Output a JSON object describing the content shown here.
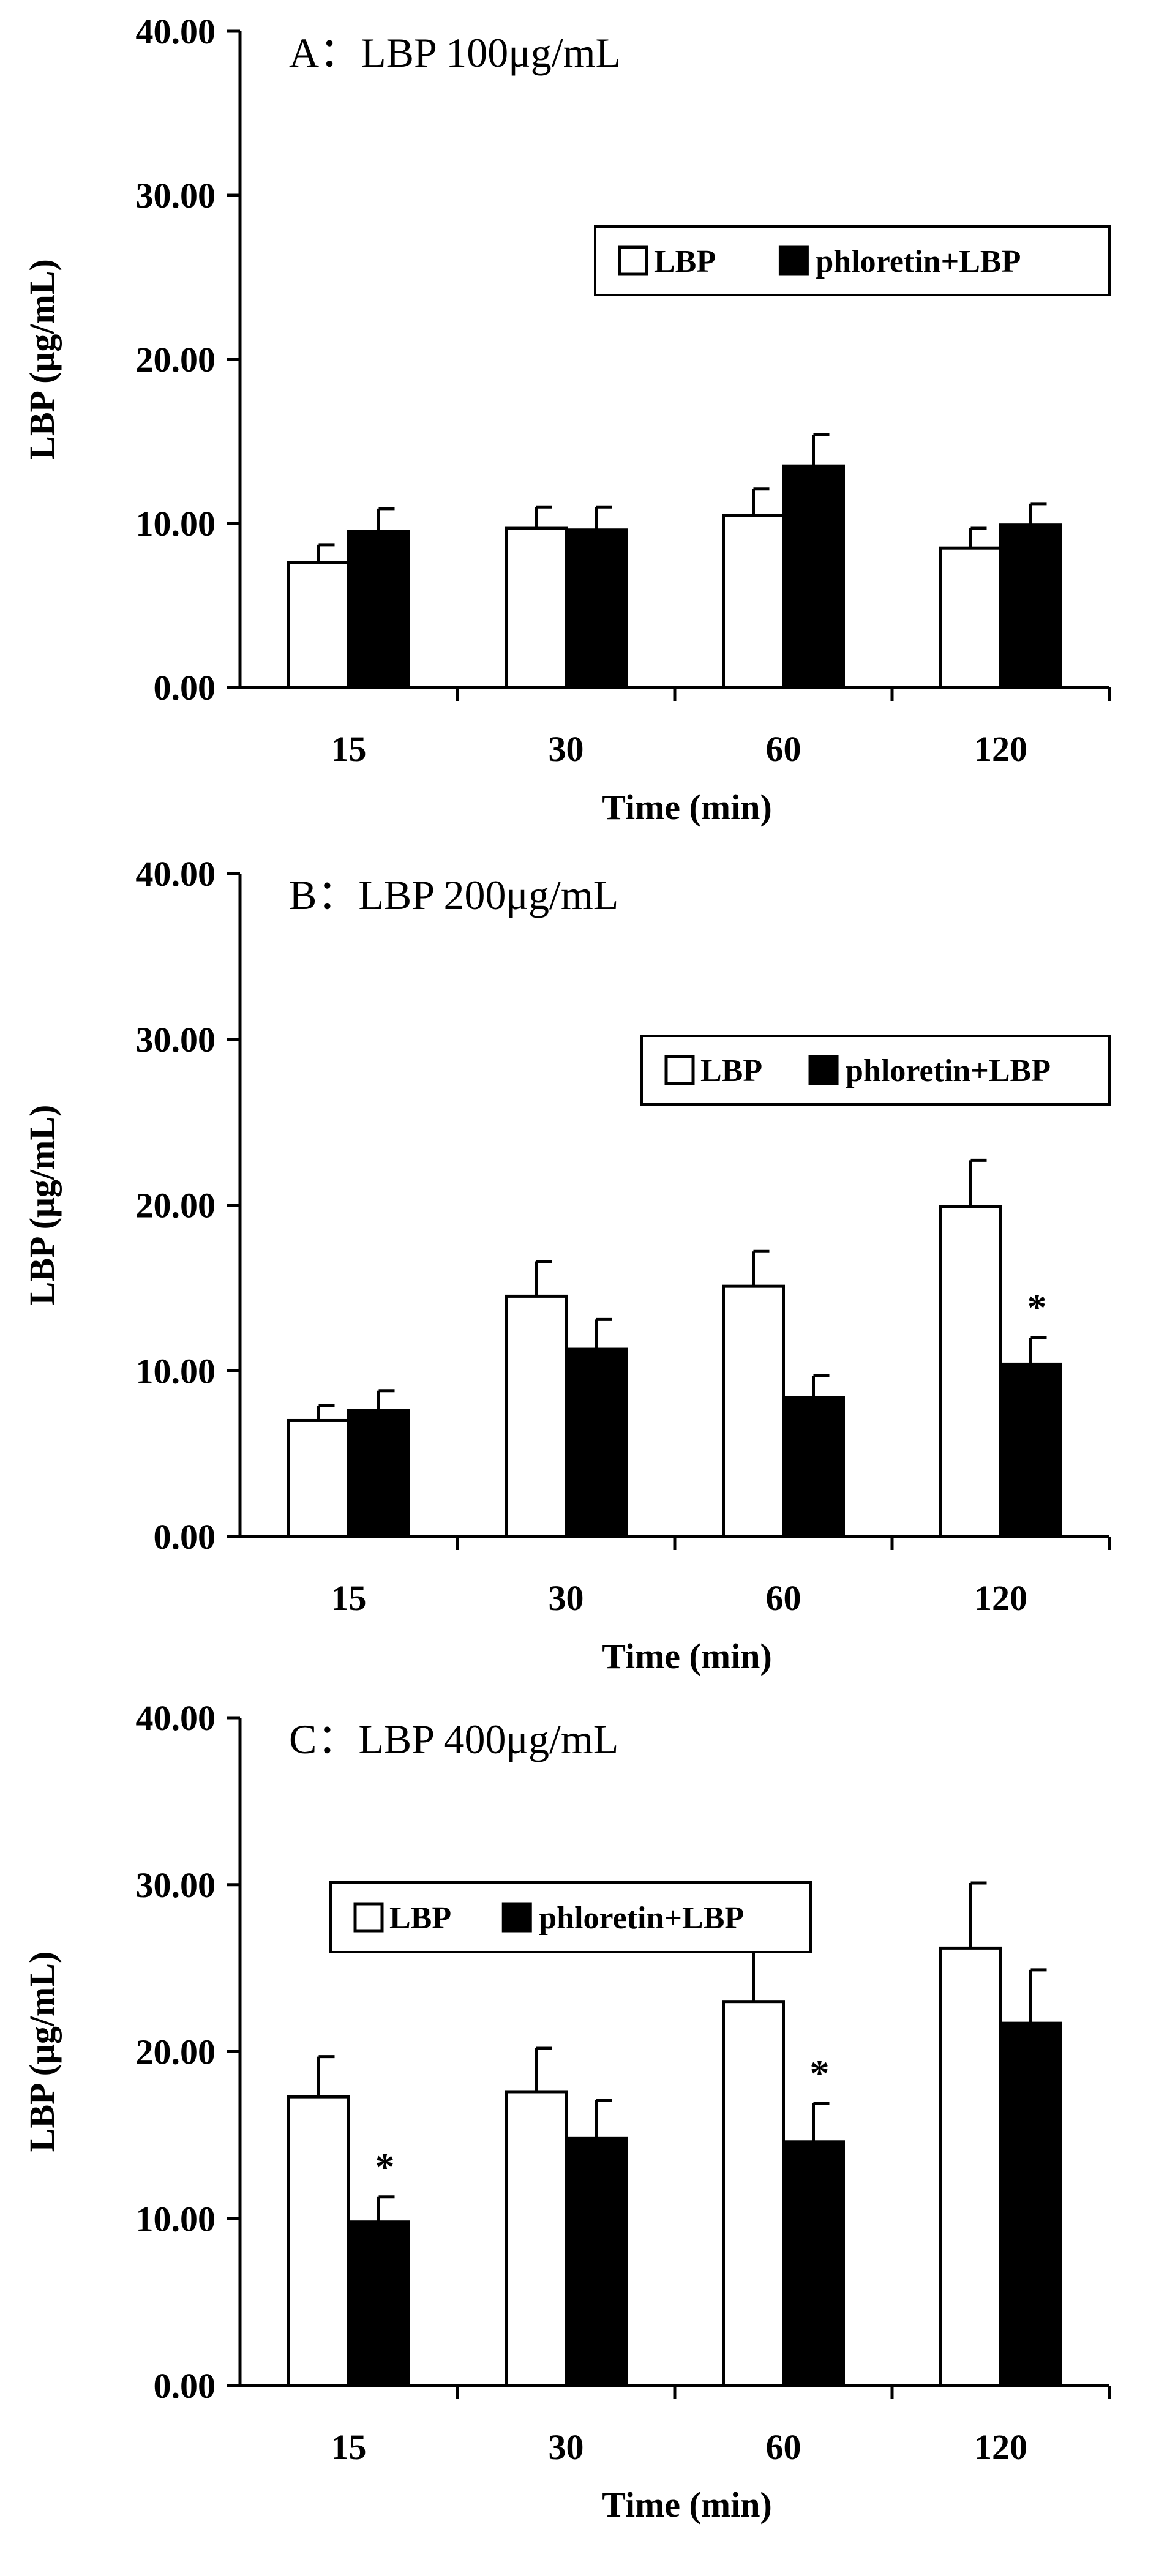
{
  "chart_data": [
    {
      "type": "bar",
      "title": "A：LBP 100μg/mL",
      "xlabel": "Time (min)",
      "ylabel": "LBP (μg/mL)",
      "ylim": [
        0,
        40
      ],
      "yticks": [
        "0.00",
        "10.00",
        "20.00",
        "30.00",
        "40.00"
      ],
      "categories": [
        "15",
        "30",
        "60",
        "120"
      ],
      "series": [
        {
          "name": "LBP",
          "values": [
            7.6,
            9.7,
            10.5,
            8.5
          ],
          "errors": [
            1.1,
            1.3,
            1.6,
            1.2
          ],
          "color": "#ffffff"
        },
        {
          "name": "phloretin+LBP",
          "values": [
            9.5,
            9.6,
            13.5,
            9.9
          ],
          "errors": [
            1.4,
            1.4,
            1.9,
            1.3
          ],
          "color": "#000000"
        }
      ],
      "significance": [
        {
          "category": "",
          "series": "",
          "marker": ""
        }
      ],
      "legend": {
        "position": "top-right"
      }
    },
    {
      "type": "bar",
      "title": "B：LBP 200μg/mL",
      "xlabel": "Time (min)",
      "ylabel": "LBP (μg/mL)",
      "ylim": [
        0,
        40
      ],
      "yticks": [
        "0.00",
        "10.00",
        "20.00",
        "30.00",
        "40.00"
      ],
      "categories": [
        "15",
        "30",
        "60",
        "120"
      ],
      "series": [
        {
          "name": "LBP",
          "values": [
            7.0,
            14.5,
            15.1,
            19.9
          ],
          "errors": [
            0.9,
            2.1,
            2.1,
            2.8
          ],
          "color": "#ffffff"
        },
        {
          "name": "phloretin+LBP",
          "values": [
            7.6,
            11.3,
            8.4,
            10.4
          ],
          "errors": [
            1.2,
            1.8,
            1.3,
            1.6
          ],
          "color": "#000000"
        }
      ],
      "significance": [
        {
          "category": "120",
          "series": "phloretin+LBP",
          "marker": "*"
        }
      ],
      "legend": {
        "position": "top-right"
      }
    },
    {
      "type": "bar",
      "title": "C：LBP 400μg/mL",
      "xlabel": "Time (min)",
      "ylabel": "LBP (μg/mL)",
      "ylim": [
        0,
        40
      ],
      "yticks": [
        "0.00",
        "10.00",
        "20.00",
        "30.00",
        "40.00"
      ],
      "categories": [
        "15",
        "30",
        "60",
        "120"
      ],
      "series": [
        {
          "name": "LBP",
          "values": [
            17.3,
            17.6,
            23.0,
            26.2
          ],
          "errors": [
            2.4,
            2.6,
            3.3,
            3.9
          ],
          "color": "#ffffff"
        },
        {
          "name": "phloretin+LBP",
          "values": [
            9.8,
            14.8,
            14.6,
            21.7
          ],
          "errors": [
            1.5,
            2.3,
            2.3,
            3.2
          ],
          "color": "#000000"
        }
      ],
      "significance": [
        {
          "category": "15",
          "series": "phloretin+LBP",
          "marker": "*"
        },
        {
          "category": "60",
          "series": "phloretin+LBP",
          "marker": "*"
        }
      ],
      "legend": {
        "position": "top-left"
      }
    }
  ]
}
